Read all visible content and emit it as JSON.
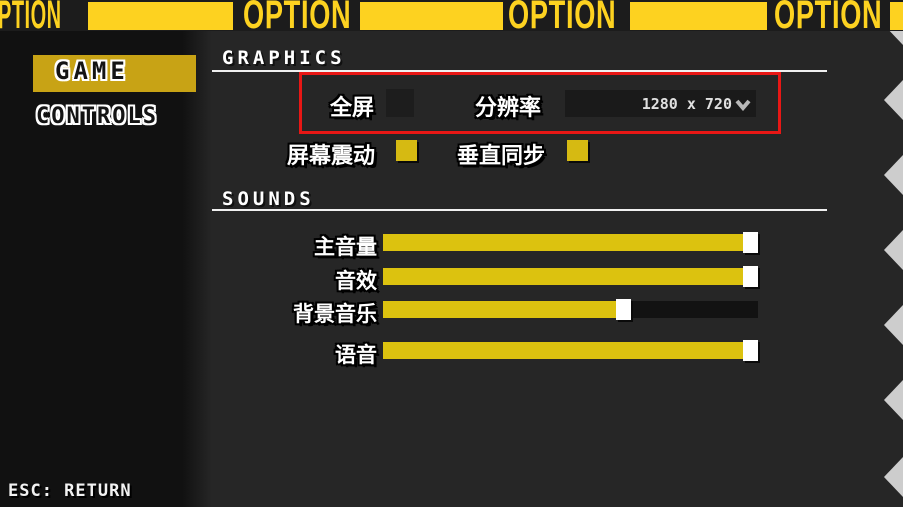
{
  "banner": {
    "accent_color": "#fdd220",
    "segments": [
      {
        "type": "text",
        "label": "PTION"
      },
      {
        "type": "bar"
      },
      {
        "type": "text",
        "label": "OPTION"
      },
      {
        "type": "bar"
      },
      {
        "type": "text",
        "label": "OPTION"
      },
      {
        "type": "bar"
      },
      {
        "type": "text",
        "label": "OPTION"
      },
      {
        "type": "bar"
      }
    ]
  },
  "sidebar": {
    "items": [
      {
        "label": "GAME",
        "selected": true
      },
      {
        "label": "CONTROLS",
        "selected": false
      }
    ],
    "footer_hint": "ESC: RETURN"
  },
  "graphics": {
    "section_title": "GRAPHICS",
    "fullscreen": {
      "label": "全屏",
      "checked": false
    },
    "resolution": {
      "label": "分辨率",
      "value": "1280 x 720"
    },
    "screen_shake": {
      "label": "屏幕震动",
      "checked": true
    },
    "vsync": {
      "label": "垂直同步",
      "checked": true
    }
  },
  "sounds": {
    "section_title": "SOUNDS",
    "sliders": [
      {
        "label": "主音量",
        "value": 100
      },
      {
        "label": "音效",
        "value": 100
      },
      {
        "label": "背景音乐",
        "value": 62
      },
      {
        "label": "语音",
        "value": 100
      }
    ]
  },
  "annotation": {
    "highlight_color": "#e81715"
  },
  "colors": {
    "banner_yellow": "#fdd220",
    "selected_item_yellow": "#c8a315",
    "slider_fill_yellow": "#dcc20f",
    "checkbox_yellow": "#d6ba12",
    "background": "#262626",
    "sidebar_background": "#111111"
  }
}
